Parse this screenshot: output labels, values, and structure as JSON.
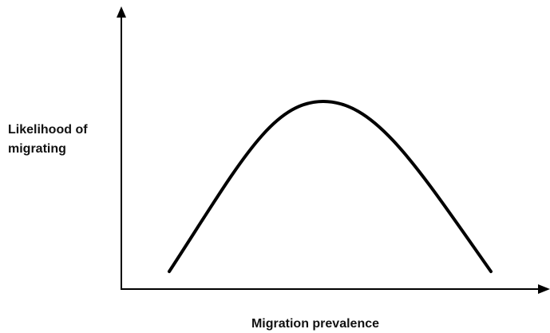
{
  "axes": {
    "y_label": [
      "Likelihood of",
      "migrating"
    ],
    "x_label": "Migration prevalence"
  }
}
